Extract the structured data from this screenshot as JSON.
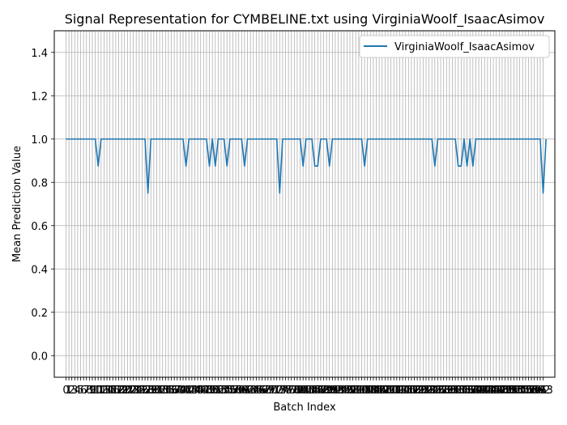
{
  "chart_data": {
    "type": "line",
    "title": "Signal Representation for CYMBELINE.txt using VirginiaWoolf_IsaacAsimov",
    "xlabel": "Batch Index",
    "ylabel": "Mean Prediction Value",
    "xlim": [
      -4,
      167
    ],
    "ylim": [
      -0.1,
      1.5
    ],
    "yticks": [
      0.0,
      0.2,
      0.4,
      0.6,
      0.8,
      1.0,
      1.2,
      1.4
    ],
    "ytick_labels": [
      "0.0",
      "0.2",
      "0.4",
      "0.6",
      "0.8",
      "1.0",
      "1.2",
      "1.4"
    ],
    "x_tick_count": 164,
    "grid": true,
    "legend_position": "top-right",
    "line_color": "#1f77b4",
    "series": [
      {
        "name": "VirginiaWoolf_IsaacAsimov",
        "dips": [
          [
            11,
            0.875
          ],
          [
            28,
            0.75
          ],
          [
            41,
            0.875
          ],
          [
            49,
            0.875
          ],
          [
            51,
            0.875
          ],
          [
            55,
            0.875
          ],
          [
            61,
            0.875
          ],
          [
            73,
            0.75
          ],
          [
            81,
            0.875
          ],
          [
            85,
            0.875
          ],
          [
            86,
            0.875
          ],
          [
            90,
            0.875
          ],
          [
            102,
            0.875
          ],
          [
            126,
            0.875
          ],
          [
            134,
            0.875
          ],
          [
            135,
            0.875
          ],
          [
            137,
            0.875
          ],
          [
            139,
            0.875
          ],
          [
            163,
            0.75
          ]
        ],
        "n_points": 165,
        "baseline": 1.0
      }
    ]
  }
}
